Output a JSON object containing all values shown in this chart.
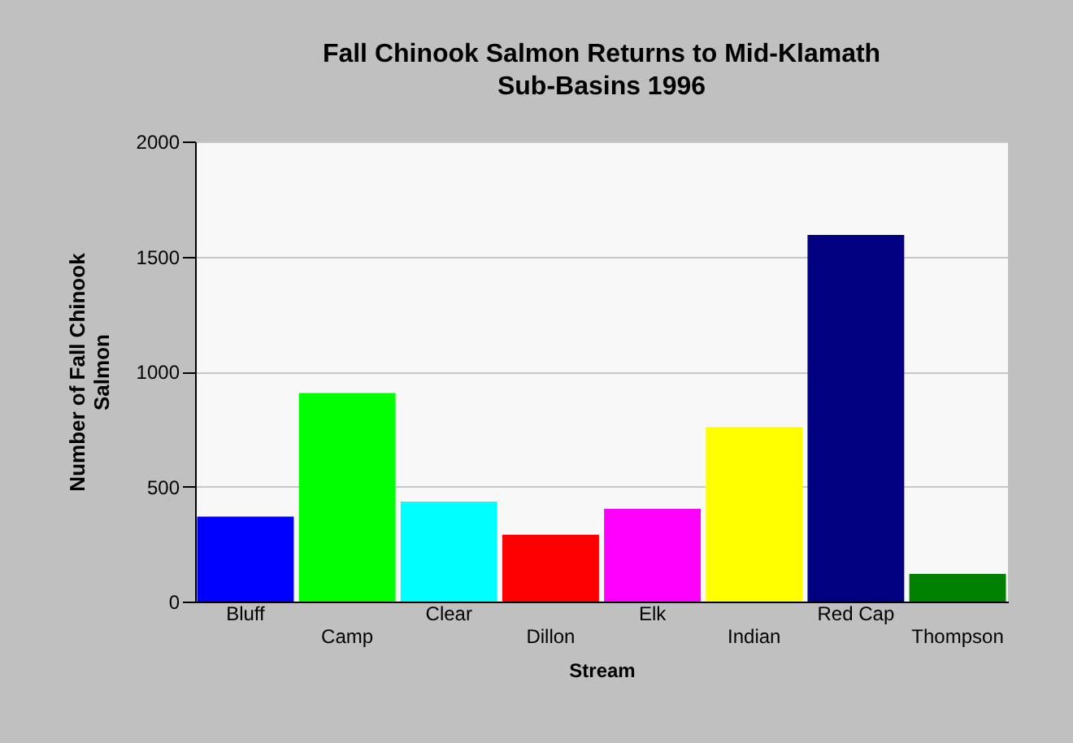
{
  "chart_data": {
    "type": "bar",
    "title": "Fall Chinook Salmon Returns to Mid-Klamath Sub-Basins 1996",
    "xlabel": "Stream",
    "ylabel": "Number of Fall Chinook Salmon",
    "categories": [
      "Bluff",
      "Camp",
      "Clear",
      "Dillon",
      "Elk",
      "Indian",
      "Red Cap",
      "Thompson"
    ],
    "values": [
      369,
      906,
      435,
      291,
      403,
      759,
      1594,
      120
    ],
    "colors": [
      "#0000ff",
      "#00ff00",
      "#00ffff",
      "#ff0000",
      "#ff00ff",
      "#ffff00",
      "#000080",
      "#008000"
    ],
    "ylim": [
      0,
      2000
    ],
    "yticks": [
      0,
      500,
      1000,
      1500,
      2000
    ],
    "grid": "y"
  }
}
